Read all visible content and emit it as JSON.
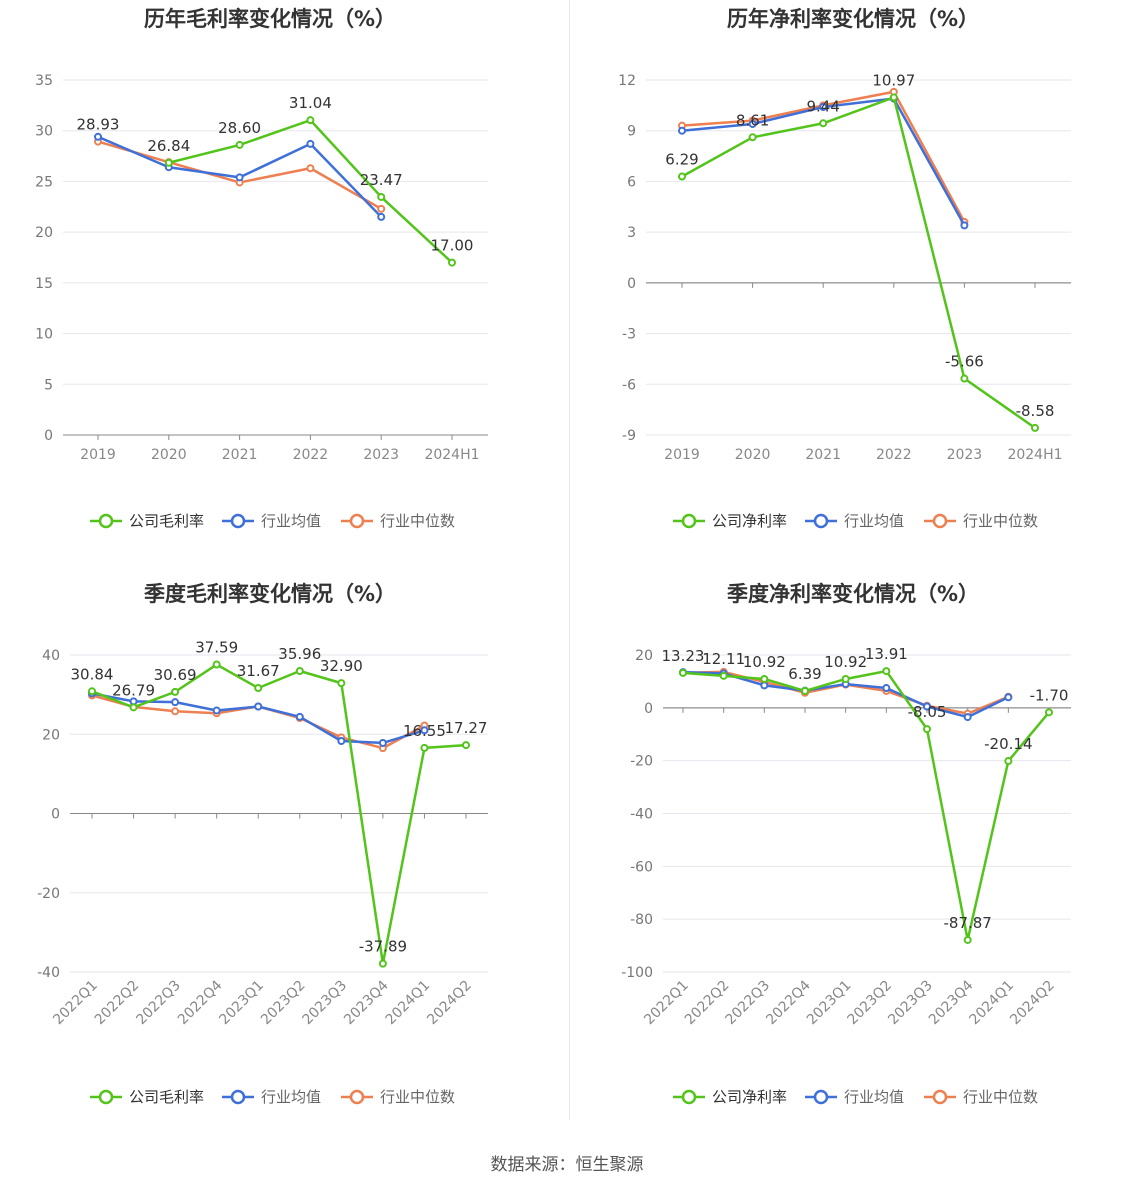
{
  "source_label": "数据来源：恒生聚源",
  "colors": {
    "company": "#52c41a",
    "avg": "#3f6fd8",
    "median": "#ee7f51"
  },
  "chart_data": [
    {
      "type": "line",
      "title": "历年毛利率变化情况（%）",
      "categories": [
        "2019",
        "2020",
        "2021",
        "2022",
        "2023",
        "2024H1"
      ],
      "ylim": [
        0,
        35
      ],
      "yticks": [
        0,
        5,
        10,
        15,
        20,
        25,
        30,
        35
      ],
      "legend": [
        "公司毛利率",
        "行业均值",
        "行业中位数"
      ],
      "legend_position": "bottom",
      "series": [
        {
          "name": "公司毛利率",
          "values": [
            null,
            26.84,
            28.6,
            31.04,
            23.47,
            17.0
          ],
          "labels": true
        },
        {
          "name": "行业均值",
          "values": [
            29.4,
            26.4,
            25.4,
            28.7,
            21.5,
            null
          ]
        },
        {
          "name": "行业中位数",
          "values": [
            28.93,
            26.9,
            24.9,
            26.3,
            22.3,
            null
          ]
        }
      ],
      "data_labels": [
        {
          "i": 0,
          "text": "28.93",
          "v": 28.93
        },
        {
          "i": 1,
          "text": "26.84",
          "v": 26.84
        },
        {
          "i": 2,
          "text": "28.60",
          "v": 28.6
        },
        {
          "i": 3,
          "text": "31.04",
          "v": 31.04
        },
        {
          "i": 4,
          "text": "23.47",
          "v": 23.47
        },
        {
          "i": 5,
          "text": "17.00",
          "v": 17.0
        }
      ]
    },
    {
      "type": "line",
      "title": "历年净利率变化情况（%）",
      "categories": [
        "2019",
        "2020",
        "2021",
        "2022",
        "2023",
        "2024H1"
      ],
      "ylim": [
        -9,
        12
      ],
      "yticks": [
        -9,
        -6,
        -3,
        0,
        3,
        6,
        9,
        12
      ],
      "legend": [
        "公司净利率",
        "行业均值",
        "行业中位数"
      ],
      "legend_position": "bottom",
      "series": [
        {
          "name": "公司净利率",
          "values": [
            6.29,
            8.61,
            9.44,
            10.97,
            -5.66,
            -8.58
          ]
        },
        {
          "name": "行业均值",
          "values": [
            9.0,
            9.4,
            10.4,
            10.9,
            3.4,
            null
          ]
        },
        {
          "name": "行业中位数",
          "values": [
            9.3,
            9.6,
            10.5,
            11.3,
            3.6,
            null
          ]
        }
      ],
      "data_labels": [
        {
          "i": 0,
          "text": "6.29",
          "v": 6.29
        },
        {
          "i": 1,
          "text": "8.61",
          "v": 8.61
        },
        {
          "i": 2,
          "text": "9.44",
          "v": 9.44
        },
        {
          "i": 3,
          "text": "10.97",
          "v": 10.97
        },
        {
          "i": 4,
          "text": "-5.66",
          "v": -5.66
        },
        {
          "i": 5,
          "text": "-8.58",
          "v": -8.58
        }
      ]
    },
    {
      "type": "line",
      "title": "季度毛利率变化情况（%）",
      "categories": [
        "2022Q1",
        "2022Q2",
        "2022Q3",
        "2022Q4",
        "2023Q1",
        "2023Q2",
        "2023Q3",
        "2023Q4",
        "2024Q1",
        "2024Q2"
      ],
      "ylim": [
        -40,
        40
      ],
      "yticks": [
        -40,
        -20,
        0,
        20,
        40
      ],
      "legend": [
        "公司毛利率",
        "行业均值",
        "行业中位数"
      ],
      "legend_position": "bottom",
      "series": [
        {
          "name": "公司毛利率",
          "values": [
            30.84,
            26.79,
            30.69,
            37.59,
            31.67,
            35.96,
            32.9,
            -37.89,
            16.55,
            17.27
          ]
        },
        {
          "name": "行业均值",
          "values": [
            30.3,
            28.3,
            28.1,
            26.0,
            27.0,
            24.4,
            18.3,
            17.8,
            21.0,
            null
          ]
        },
        {
          "name": "行业中位数",
          "values": [
            29.8,
            26.9,
            25.8,
            25.3,
            27.0,
            24.1,
            19.2,
            16.5,
            22.2,
            null
          ]
        }
      ],
      "data_labels": [
        {
          "i": 0,
          "text": "30.84",
          "v": 30.84
        },
        {
          "i": 1,
          "text": "26.79",
          "v": 26.79
        },
        {
          "i": 2,
          "text": "30.69",
          "v": 30.69
        },
        {
          "i": 3,
          "text": "37.59",
          "v": 37.59
        },
        {
          "i": 4,
          "text": "31.67",
          "v": 31.67
        },
        {
          "i": 5,
          "text": "35.96",
          "v": 35.96
        },
        {
          "i": 6,
          "text": "32.90",
          "v": 32.9
        },
        {
          "i": 7,
          "text": "-37.89",
          "v": -37.89
        },
        {
          "i": 8,
          "text": "16.55",
          "v": 16.55
        },
        {
          "i": 9,
          "text": "17.27",
          "v": 17.27
        }
      ]
    },
    {
      "type": "line",
      "title": "季度净利率变化情况（%）",
      "categories": [
        "2022Q1",
        "2022Q2",
        "2022Q3",
        "2022Q4",
        "2023Q1",
        "2023Q2",
        "2023Q3",
        "2023Q4",
        "2024Q1",
        "2024Q2"
      ],
      "ylim": [
        -100,
        20
      ],
      "yticks": [
        -100,
        -80,
        -60,
        -40,
        -20,
        0,
        20
      ],
      "legend": [
        "公司净利率",
        "行业均值",
        "行业中位数"
      ],
      "legend_position": "bottom",
      "series": [
        {
          "name": "公司净利率",
          "values": [
            13.23,
            12.11,
            10.92,
            6.39,
            10.92,
            13.91,
            -8.05,
            -87.87,
            -20.14,
            -1.7
          ]
        },
        {
          "name": "行业均值",
          "values": [
            13.5,
            13.0,
            8.5,
            6.5,
            9.0,
            7.5,
            0.5,
            -3.5,
            4.0,
            null
          ]
        },
        {
          "name": "行业中位数",
          "values": [
            13.3,
            13.6,
            9.8,
            5.7,
            8.8,
            6.4,
            0.8,
            -2.2,
            4.2,
            null
          ]
        }
      ],
      "data_labels": [
        {
          "i": 0,
          "text": "13.23",
          "v": 13.23
        },
        {
          "i": 1,
          "text": "12.11",
          "v": 12.11
        },
        {
          "i": 2,
          "text": "10.92",
          "v": 10.92
        },
        {
          "i": 3,
          "text": "6.39",
          "v": 6.39
        },
        {
          "i": 4,
          "text": "10.92",
          "v": 10.92
        },
        {
          "i": 5,
          "text": "13.91",
          "v": 13.91
        },
        {
          "i": 6,
          "text": "-8.05",
          "v": -8.05
        },
        {
          "i": 7,
          "text": "-87.87",
          "v": -87.87
        },
        {
          "i": 8,
          "text": "-20.14",
          "v": -20.14
        },
        {
          "i": 9,
          "text": "-1.70",
          "v": -1.7
        }
      ]
    }
  ]
}
